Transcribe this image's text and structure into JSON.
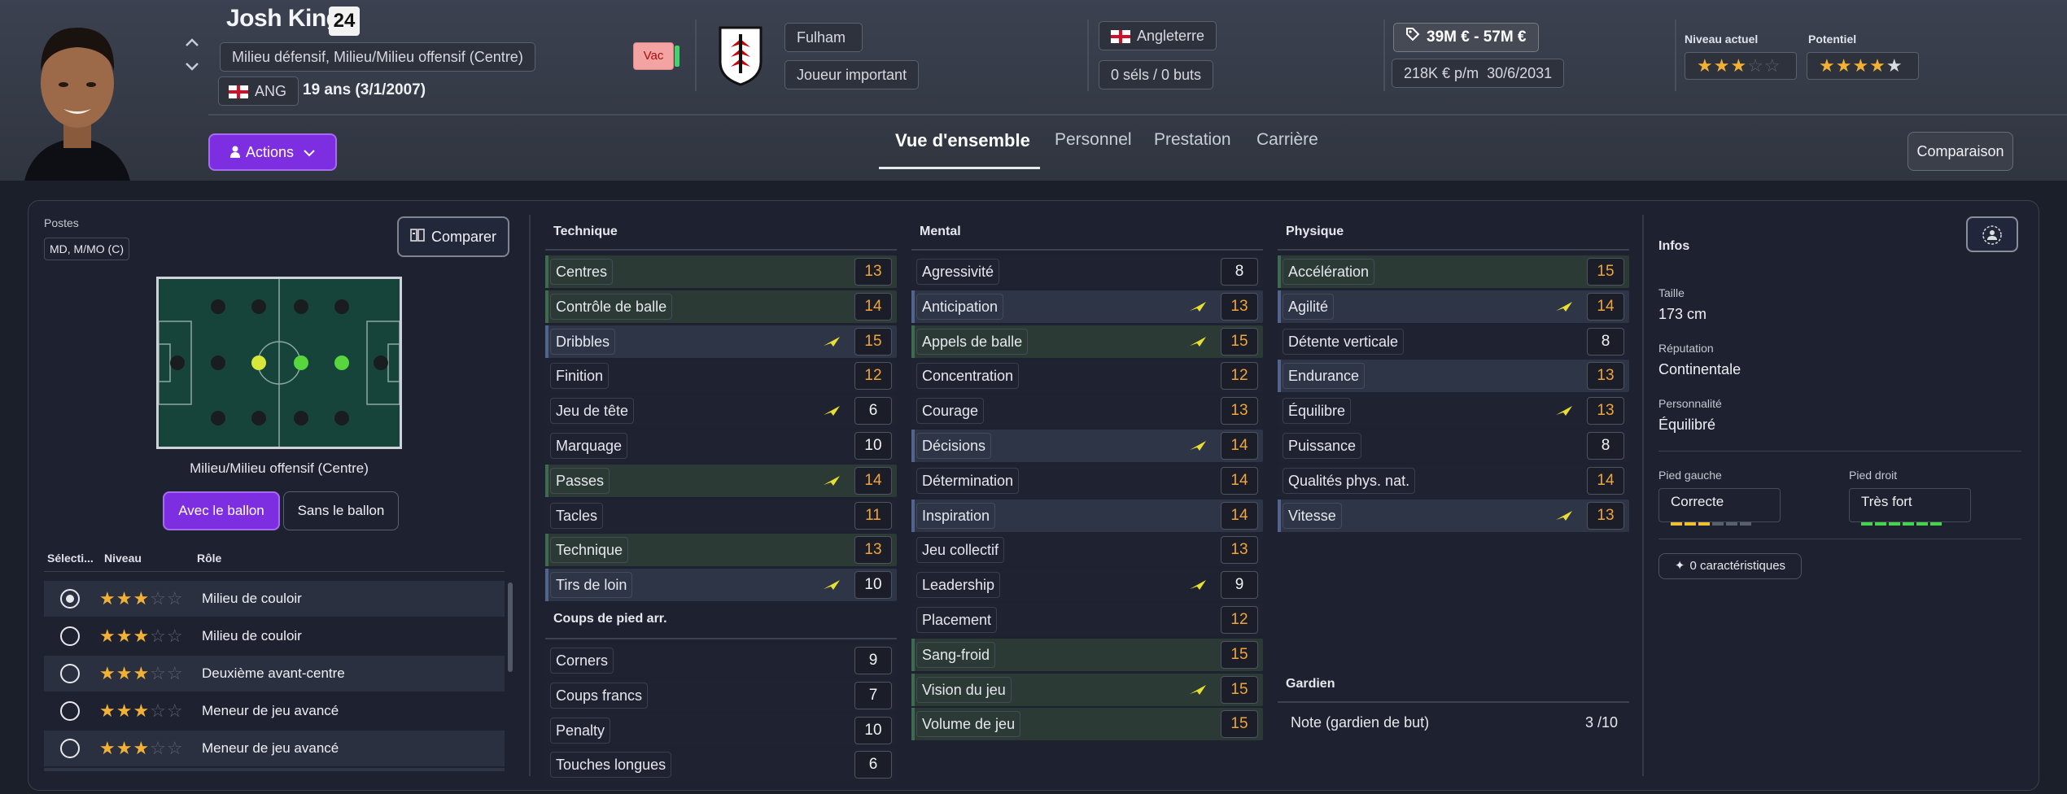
{
  "player": {
    "name": "Josh King",
    "number": "24",
    "positions": "Milieu défensif, Milieu/Milieu offensif (Centre)",
    "nation_code": "ANG",
    "age": "19 ans (3/1/2007)",
    "status_badge": "Vac"
  },
  "club": {
    "name": "Fulham",
    "role": "Joueur important"
  },
  "country": {
    "name": "Angleterre",
    "caps": "0 séls / 0 buts"
  },
  "value": {
    "range": "39M € - 57M €",
    "wage": "218K € p/m",
    "contract_end": "30/6/2031"
  },
  "ability": {
    "current_label": "Niveau actuel",
    "current_stars": 3,
    "potential_label": "Potentiel",
    "potential_stars": 4.5
  },
  "actions_label": "Actions",
  "tabs": [
    {
      "label": "Vue d'ensemble",
      "active": true
    },
    {
      "label": "Personnel"
    },
    {
      "label": "Prestation"
    },
    {
      "label": "Carrière"
    }
  ],
  "compare_header_label": "Comparaison",
  "left": {
    "postes_label": "Postes",
    "postes_value": "MD, M/MO (C)",
    "compare_label": "Comparer",
    "pitch_caption": "Milieu/Milieu offensif (Centre)",
    "with_ball": "Avec le ballon",
    "without_ball": "Sans le ballon",
    "col_select": "Sélecti...",
    "col_level": "Niveau",
    "col_role": "Rôle",
    "roles": [
      {
        "name": "Milieu de couloir",
        "stars": 3,
        "selected": true
      },
      {
        "name": "Milieu de couloir",
        "stars": 3,
        "selected": false
      },
      {
        "name": "Deuxième avant-centre",
        "stars": 3,
        "selected": false
      },
      {
        "name": "Meneur de jeu avancé",
        "stars": 3,
        "selected": false
      },
      {
        "name": "Meneur de jeu avancé",
        "stars": 3,
        "selected": false
      }
    ]
  },
  "technique": {
    "title": "Technique",
    "attrs": [
      {
        "name": "Centres",
        "value": "13",
        "hl": "g",
        "orange": true,
        "arrow": false
      },
      {
        "name": "Contrôle de balle",
        "value": "14",
        "hl": "g",
        "orange": true,
        "arrow": false
      },
      {
        "name": "Dribbles",
        "value": "15",
        "hl": "b",
        "orange": true,
        "arrow": true
      },
      {
        "name": "Finition",
        "value": "12",
        "hl": "n",
        "orange": true,
        "arrow": false
      },
      {
        "name": "Jeu de tête",
        "value": "6",
        "hl": "n",
        "orange": false,
        "arrow": true
      },
      {
        "name": "Marquage",
        "value": "10",
        "hl": "n",
        "orange": false,
        "arrow": false
      },
      {
        "name": "Passes",
        "value": "14",
        "hl": "g",
        "orange": true,
        "arrow": true
      },
      {
        "name": "Tacles",
        "value": "11",
        "hl": "n",
        "orange": true,
        "arrow": false
      },
      {
        "name": "Technique",
        "value": "13",
        "hl": "g",
        "orange": true,
        "arrow": false
      },
      {
        "name": "Tirs de loin",
        "value": "10",
        "hl": "b",
        "orange": false,
        "arrow": true
      }
    ]
  },
  "setpieces": {
    "title": "Coups de pied arr.",
    "attrs": [
      {
        "name": "Corners",
        "value": "9",
        "hl": "n",
        "orange": false,
        "arrow": false
      },
      {
        "name": "Coups francs",
        "value": "7",
        "hl": "n",
        "orange": false,
        "arrow": false
      },
      {
        "name": "Penalty",
        "value": "10",
        "hl": "n",
        "orange": false,
        "arrow": false
      },
      {
        "name": "Touches longues",
        "value": "6",
        "hl": "n",
        "orange": false,
        "arrow": false
      }
    ]
  },
  "mental": {
    "title": "Mental",
    "attrs": [
      {
        "name": "Agressivité",
        "value": "8",
        "hl": "n",
        "orange": false,
        "arrow": false
      },
      {
        "name": "Anticipation",
        "value": "13",
        "hl": "b",
        "orange": true,
        "arrow": true
      },
      {
        "name": "Appels de balle",
        "value": "15",
        "hl": "g",
        "orange": true,
        "arrow": true
      },
      {
        "name": "Concentration",
        "value": "12",
        "hl": "n",
        "orange": true,
        "arrow": false
      },
      {
        "name": "Courage",
        "value": "13",
        "hl": "n",
        "orange": true,
        "arrow": false
      },
      {
        "name": "Décisions",
        "value": "14",
        "hl": "b",
        "orange": true,
        "arrow": true
      },
      {
        "name": "Détermination",
        "value": "14",
        "hl": "n",
        "orange": true,
        "arrow": false
      },
      {
        "name": "Inspiration",
        "value": "14",
        "hl": "b",
        "orange": true,
        "arrow": false
      },
      {
        "name": "Jeu collectif",
        "value": "13",
        "hl": "n",
        "orange": true,
        "arrow": false
      },
      {
        "name": "Leadership",
        "value": "9",
        "hl": "n",
        "orange": false,
        "arrow": true
      },
      {
        "name": "Placement",
        "value": "12",
        "hl": "n",
        "orange": true,
        "arrow": false
      },
      {
        "name": "Sang-froid",
        "value": "15",
        "hl": "g",
        "orange": true,
        "arrow": false
      },
      {
        "name": "Vision du jeu",
        "value": "15",
        "hl": "g",
        "orange": true,
        "arrow": true
      },
      {
        "name": "Volume de jeu",
        "value": "15",
        "hl": "g",
        "orange": true,
        "arrow": false
      }
    ]
  },
  "physique": {
    "title": "Physique",
    "attrs": [
      {
        "name": "Accélération",
        "value": "15",
        "hl": "g",
        "orange": true,
        "arrow": false
      },
      {
        "name": "Agilité",
        "value": "14",
        "hl": "b",
        "orange": true,
        "arrow": true
      },
      {
        "name": "Détente verticale",
        "value": "8",
        "hl": "n",
        "orange": false,
        "arrow": false
      },
      {
        "name": "Endurance",
        "value": "13",
        "hl": "b",
        "orange": true,
        "arrow": false
      },
      {
        "name": "Équilibre",
        "value": "13",
        "hl": "n",
        "orange": true,
        "arrow": true
      },
      {
        "name": "Puissance",
        "value": "8",
        "hl": "n",
        "orange": false,
        "arrow": false
      },
      {
        "name": "Qualités phys. nat.",
        "value": "14",
        "hl": "n",
        "orange": true,
        "arrow": false
      },
      {
        "name": "Vitesse",
        "value": "13",
        "hl": "b",
        "orange": true,
        "arrow": true
      }
    ]
  },
  "goalkeeper": {
    "title": "Gardien",
    "label": "Note (gardien de but)",
    "value": "3 /10"
  },
  "infos": {
    "title": "Infos",
    "height_label": "Taille",
    "height": "173 cm",
    "reputation_label": "Réputation",
    "reputation": "Continentale",
    "personality_label": "Personnalité",
    "personality": "Équilibré",
    "left_foot_label": "Pied gauche",
    "left_foot": "Correcte",
    "right_foot_label": "Pied droit",
    "right_foot": "Très fort",
    "traits_label": "0 caractéristiques"
  },
  "colors": {
    "accent": "#7c2ee0",
    "highlight_orange": "#f0a43c",
    "arrow_yellow": "#e8e030"
  }
}
